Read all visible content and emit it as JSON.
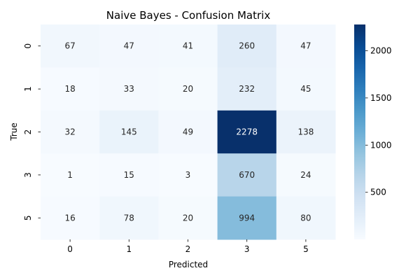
{
  "chart_data": {
    "type": "heatmap",
    "title": "Naive Bayes - Confusion Matrix",
    "xlabel": "Predicted",
    "ylabel": "True",
    "x_categories": [
      "0",
      "1",
      "2",
      "3",
      "5"
    ],
    "y_categories": [
      "0",
      "1",
      "2",
      "3",
      "5"
    ],
    "values": [
      [
        67,
        47,
        41,
        260,
        47
      ],
      [
        18,
        33,
        20,
        232,
        45
      ],
      [
        32,
        145,
        49,
        2278,
        138
      ],
      [
        1,
        15,
        3,
        670,
        24
      ],
      [
        16,
        78,
        20,
        994,
        80
      ]
    ],
    "colormap": "Blues",
    "colorbar": {
      "vmin": 1,
      "vmax": 2278,
      "ticks": [
        500,
        1000,
        1500,
        2000
      ]
    },
    "grid": false,
    "legend": "colorbar-right"
  }
}
